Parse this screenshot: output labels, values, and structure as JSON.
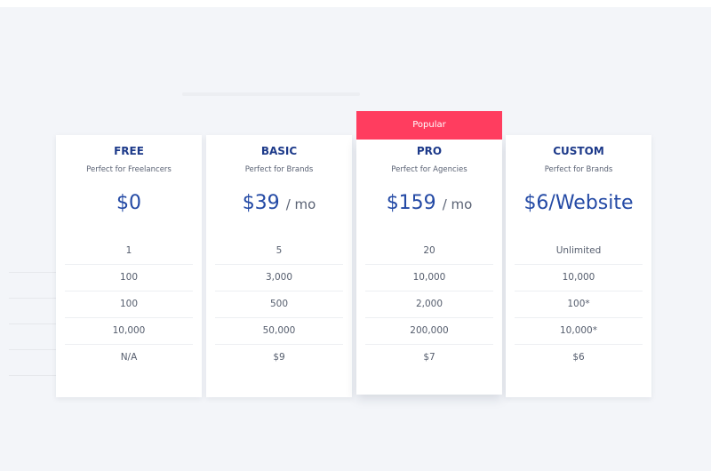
{
  "badge": "Popular",
  "plans": [
    {
      "name": "FREE",
      "subtitle": "Perfect for Freelancers",
      "price": "$0",
      "unit": null,
      "features": [
        "1",
        "100",
        "100",
        "10,000",
        "N/A"
      ]
    },
    {
      "name": "BASIC",
      "subtitle": "Perfect for Brands",
      "price": "$39",
      "unit": "/ mo",
      "features": [
        "5",
        "3,000",
        "500",
        "50,000",
        "$9"
      ]
    },
    {
      "name": "PRO",
      "subtitle": "Perfect for Agencies",
      "price": "$159",
      "unit": "/ mo",
      "features": [
        "20",
        "10,000",
        "2,000",
        "200,000",
        "$7"
      ]
    },
    {
      "name": "CUSTOM",
      "subtitle": "Perfect for Brands",
      "price": "$6/Website",
      "unit": null,
      "features": [
        "Unlimited",
        "10,000",
        "100*",
        "10,000*",
        "$6"
      ]
    }
  ]
}
